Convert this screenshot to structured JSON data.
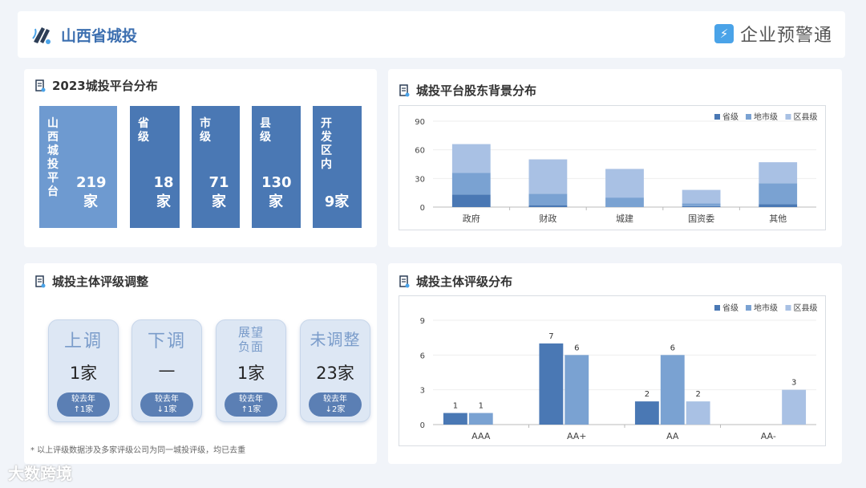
{
  "header": {
    "title": "山西省城投",
    "brand": "企业预警通"
  },
  "platform": {
    "title": "2023城投平台分布",
    "items": [
      {
        "name": "山西城投平台",
        "value": "219家"
      },
      {
        "name": "省级",
        "value": "18家"
      },
      {
        "name": "市级",
        "value": "71家"
      },
      {
        "name": "县级",
        "value": "130家"
      },
      {
        "name": "开发区内",
        "value": "9家"
      }
    ]
  },
  "rating_adjust": {
    "title": "城投主体评级调整",
    "cards": [
      {
        "label": "上调",
        "count": "1家",
        "change_label": "较去年",
        "change": "↑1家"
      },
      {
        "label": "下调",
        "count": "—",
        "change_label": "较去年",
        "change": "↓1家"
      },
      {
        "label": "展望负面",
        "count": "1家",
        "change_label": "较去年",
        "change": "↑1家"
      },
      {
        "label": "未调整",
        "count": "23家",
        "change_label": "较去年",
        "change": "↓2家"
      }
    ],
    "note": "* 以上评级数据涉及多家评级公司为同一城投评级，均已去重"
  },
  "watermark": "大数跨境",
  "chart_data": [
    {
      "type": "bar",
      "stacked": true,
      "title": "城投平台股东背景分布",
      "categories": [
        "政府",
        "财政",
        "城建",
        "国资委",
        "其他"
      ],
      "series": [
        {
          "name": "省级",
          "values": [
            13,
            2,
            0,
            1,
            3
          ],
          "color": "#4a78b4"
        },
        {
          "name": "地市级",
          "values": [
            23,
            12,
            10,
            3,
            22
          ],
          "color": "#7aa2d2"
        },
        {
          "name": "区县级",
          "values": [
            30,
            36,
            30,
            14,
            22
          ],
          "color": "#a9c1e4"
        }
      ],
      "yticks": [
        "0",
        "30",
        "60",
        "90"
      ],
      "ylim": [
        0,
        90
      ],
      "legend": "top-right"
    },
    {
      "type": "bar",
      "stacked": false,
      "title": "城投主体评级分布",
      "categories": [
        "AAA",
        "AA+",
        "AA",
        "AA-"
      ],
      "series": [
        {
          "name": "省级",
          "values": [
            1,
            7,
            2,
            0
          ],
          "labels": [
            "1",
            "7",
            "2",
            ""
          ],
          "color": "#4a78b4"
        },
        {
          "name": "地市级",
          "values": [
            1,
            6,
            6,
            0
          ],
          "labels": [
            "1",
            "6",
            "6",
            ""
          ],
          "color": "#7aa2d2"
        },
        {
          "name": "区县级",
          "values": [
            0,
            0,
            2,
            3
          ],
          "labels": [
            "",
            "",
            "2",
            "3"
          ],
          "color": "#a9c1e4"
        }
      ],
      "yticks": [
        "0",
        "3",
        "6",
        "9"
      ],
      "ylim": [
        0,
        9
      ],
      "legend": "top-right"
    }
  ]
}
